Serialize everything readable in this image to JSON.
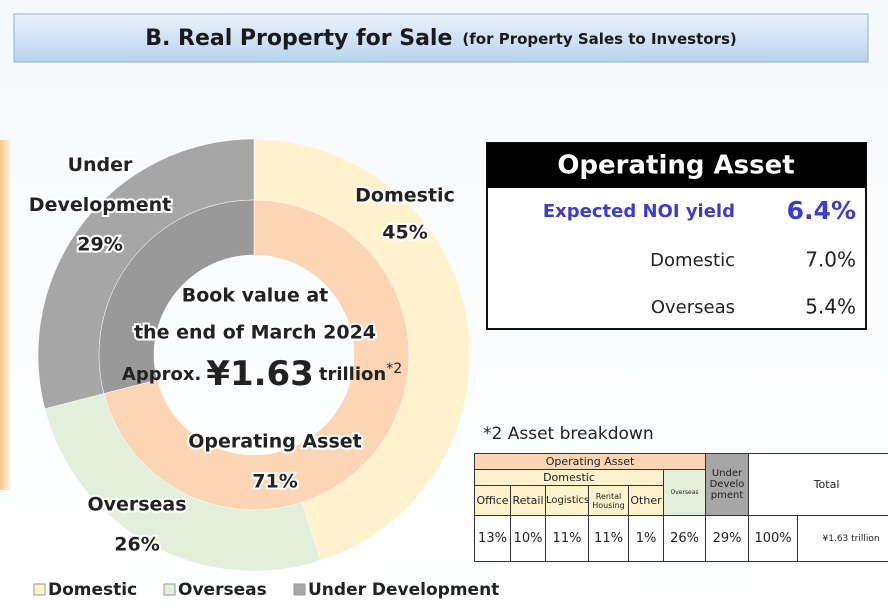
{
  "header": {
    "title": "B. Real Property for Sale",
    "subtitle": "(for Property Sales to Investors)"
  },
  "chart_data": {
    "type": "donut",
    "rings": [
      {
        "categories": [
          "Domestic",
          "Overseas",
          "Under Development"
        ],
        "values": [
          45,
          26,
          29
        ],
        "value_labels": [
          "45%",
          "26%",
          "29%"
        ],
        "colors": [
          "#fff2cc",
          "#e2efda",
          "#a6a6a6"
        ]
      },
      {
        "categories": [
          "Operating Asset",
          null
        ],
        "values": [
          71,
          29
        ],
        "value_labels": [
          "71%",
          null
        ],
        "colors": [
          "#fcd5b4",
          "#999999"
        ]
      }
    ],
    "center": {
      "line1": "Book value at",
      "line2": "the end of March 2024",
      "prefix": "Approx.",
      "amount": "¥1.63",
      "unit": "trillion",
      "note": "*2"
    },
    "legend": true
  },
  "operating_asset": {
    "title": "Operating Asset",
    "rows": [
      {
        "label": "Expected NOI yield",
        "value": "6.4%"
      },
      {
        "label": "Domestic",
        "value": "7.0%"
      },
      {
        "label": "Overseas",
        "value": "5.4%"
      }
    ]
  },
  "breakdown": {
    "note": "*2  Asset breakdown",
    "operating": "Operating Asset",
    "domestic": "Domestic",
    "overseas": "Overseas",
    "under": "Under Development",
    "total": "Total",
    "items": [
      "Office",
      "Retail",
      "Logistics",
      "Rental Housing",
      "Other"
    ],
    "values": [
      "13%",
      "10%",
      "11%",
      "11%",
      "1%",
      "26%",
      "29%",
      "100%",
      "¥1.63 trillion"
    ]
  }
}
